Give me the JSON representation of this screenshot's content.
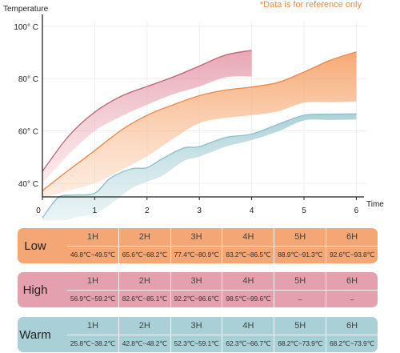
{
  "note": "*Data is for reference only",
  "colors": {
    "low": "#f4a674",
    "high": "#e5a0ae",
    "warm": "#a8d0d6"
  },
  "chart_data": {
    "type": "area",
    "ylabel": "Temperature",
    "xlabel": "Time",
    "xticks": [
      "0",
      "1",
      "2",
      "3",
      "4",
      "5",
      "6"
    ],
    "yticks": [
      {
        "value": 40,
        "label": "40° C"
      },
      {
        "value": 60,
        "label": "60° C"
      },
      {
        "value": 80,
        "label": "80° C"
      },
      {
        "value": 100,
        "label": "100° C"
      }
    ],
    "xlim": [
      0,
      6.2
    ],
    "ylim": [
      40,
      100
    ],
    "series": [
      {
        "name": "High",
        "color": "#c36b7c",
        "x": [
          0,
          0.5,
          1,
          1.5,
          2,
          2.5,
          3,
          3.5,
          4
        ],
        "upper": [
          44.6,
          58.0,
          67.2,
          73.2,
          77.0,
          80.6,
          84.8,
          89.0,
          90.8
        ],
        "lower": [
          40.0,
          51.0,
          60.0,
          65.5,
          70.0,
          74.0,
          77.0,
          80.5,
          80.8
        ]
      },
      {
        "name": "Low",
        "color": "#f08a4b",
        "x": [
          0,
          0.5,
          1,
          1.5,
          2,
          2.5,
          3,
          3.5,
          4,
          4.5,
          5,
          5.5,
          6
        ],
        "upper": [
          37.2,
          45.0,
          52.5,
          60.2,
          66.0,
          70.0,
          73.5,
          75.6,
          76.8,
          78.5,
          82.5,
          87.0,
          90.2
        ],
        "lower": [
          34.4,
          37.2,
          40.0,
          45.0,
          50.3,
          57.0,
          63.0,
          65.0,
          66.0,
          67.5,
          70.8,
          71.0,
          71.3
        ]
      },
      {
        "name": "Warm",
        "color": "#8ec3cd",
        "x": [
          0,
          0.3,
          0.6,
          1,
          1.3,
          1.7,
          2,
          2.3,
          2.7,
          3,
          3.5,
          4,
          4.5,
          5,
          5.5,
          6
        ],
        "upper": [
          26.8,
          34.5,
          35.5,
          36.2,
          42.0,
          45.5,
          46.0,
          49.5,
          53.5,
          54.0,
          57.5,
          58.8,
          62.5,
          66.0,
          66.4,
          66.5
        ],
        "lower": [
          22.8,
          24.5,
          26.8,
          28.4,
          32.0,
          38.0,
          40.6,
          43.0,
          48.5,
          50.2,
          54.0,
          56.5,
          59.8,
          64.0,
          64.2,
          64.4
        ]
      }
    ]
  },
  "tables": [
    {
      "label": "Low",
      "color": "#f4a674",
      "headers": [
        "1H",
        "2H",
        "3H",
        "4H",
        "5H",
        "6H"
      ],
      "values": [
        "46.8℃~49.5℃",
        "65.6℃~68.2℃",
        "77.4℃~80.9℃",
        "83.2℃~86.5℃",
        "88.9℃~91.3℃",
        "92.6℃~93.8℃"
      ]
    },
    {
      "label": "High",
      "color": "#e5a0ae",
      "headers": [
        "1H",
        "2H",
        "3H",
        "4H",
        "5H",
        "6H"
      ],
      "values": [
        "56.9℃~59.2℃",
        "82.6℃~85.1℃",
        "92.2℃~96.6℃",
        "98.5℃~99.6℃",
        "–",
        "–"
      ]
    },
    {
      "label": "Warm",
      "color": "#a8d0d6",
      "headers": [
        "1H",
        "2H",
        "3H",
        "4H",
        "5H",
        "6H"
      ],
      "values": [
        "25.8℃~38.2℃",
        "42.8℃~48.2℃",
        "52.3℃~59.1℃",
        "62.3℃~66.7℃",
        "68.2℃~73.9℃",
        "68.2℃~73.9℃"
      ]
    }
  ]
}
